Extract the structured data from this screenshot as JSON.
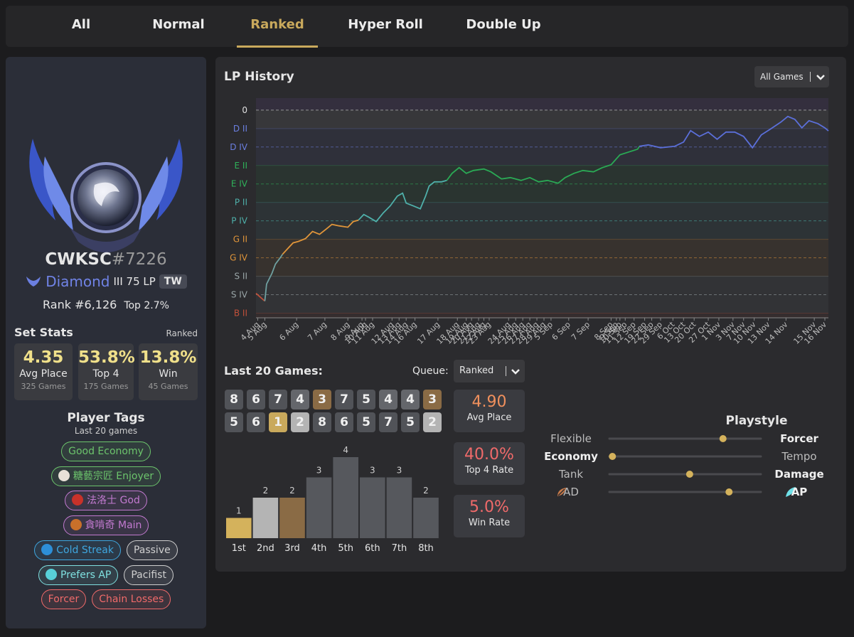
{
  "tabs": {
    "items": [
      "All",
      "Normal",
      "Ranked",
      "Hyper Roll",
      "Double Up"
    ],
    "active": 2
  },
  "profile": {
    "name": "CWKSC",
    "tag": "#7226",
    "tier": "Diamond",
    "division": "III 75 LP",
    "region": "TW",
    "rank": "Rank #6,126",
    "top": "Top 2.7%"
  },
  "set_stats": {
    "title": "Set Stats",
    "queue": "Ranked",
    "stats": [
      {
        "value": "4.35",
        "label": "Avg Place",
        "games": "325 Games"
      },
      {
        "value": "53.8%",
        "label": "Top 4",
        "games": "175 Games"
      },
      {
        "value": "13.8%",
        "label": "Win",
        "games": "45 Games"
      }
    ]
  },
  "player_tags": {
    "title": "Player Tags",
    "subtitle": "Last 20 games",
    "rows": [
      [
        {
          "text": "Good Economy",
          "color": "#6cc46c"
        }
      ],
      [
        {
          "text": "糖藝宗匠 Enjoyer",
          "color": "#6cc46c",
          "icon_color": "#e8e0d8"
        }
      ],
      [
        {
          "text": "法洛士 God",
          "color": "#c27ad0",
          "icon_color": "#c8322a"
        }
      ],
      [
        {
          "text": "貪啃奇 Main",
          "color": "#c27ad0",
          "icon_color": "#c9702a"
        }
      ],
      [
        {
          "text": "Cold Streak",
          "color": "#3fa7e0",
          "icon_color": "#2d8fd8"
        },
        {
          "text": "Passive",
          "color": "#cfcfcf"
        }
      ],
      [
        {
          "text": "Prefers AP",
          "color": "#7fe0e0",
          "icon_color": "#58d0d8"
        },
        {
          "text": "Pacifist",
          "color": "#cfcfcf"
        }
      ],
      [
        {
          "text": "Forcer",
          "color": "#f06a6a"
        },
        {
          "text": "Chain Losses",
          "color": "#f06a6a"
        }
      ]
    ]
  },
  "filter": "All Games",
  "last20": {
    "title": "Last 20 Games:",
    "queue_label": "Queue:",
    "queue": "Ranked",
    "placements": [
      [
        8,
        6,
        7,
        4,
        3,
        7,
        5,
        4,
        4,
        3
      ],
      [
        5,
        6,
        1,
        2,
        8,
        6,
        5,
        7,
        5,
        2
      ]
    ],
    "place_colors": [
      "#c9a95c",
      "#b4b4b4",
      "#8a6b45",
      "#64666b",
      "#515358",
      "#515358",
      "#515358",
      "#515358"
    ],
    "stats": [
      {
        "value": "4.90",
        "label": "Avg Place",
        "color": "#f0905d"
      },
      {
        "value": "40.0%",
        "label": "Top 4 Rate",
        "color": "#f06a6a"
      },
      {
        "value": "5.0%",
        "label": "Win Rate",
        "color": "#f06a6a"
      }
    ]
  },
  "playstyle": {
    "title": "Playstyle",
    "rows": [
      {
        "left": "Flexible",
        "right": "Forcer",
        "value": 0.75,
        "bold": "right"
      },
      {
        "left": "Economy",
        "right": "Tempo",
        "value": 0.02,
        "bold": "left"
      },
      {
        "left": "Tank",
        "right": "Damage",
        "value": 0.53,
        "bold": "right"
      },
      {
        "left": "AD",
        "right": "AP",
        "value": 0.79,
        "bold": "right"
      }
    ]
  },
  "chart_data": [
    {
      "type": "line",
      "title": "LP History",
      "xlim": [
        0,
        324
      ],
      "ylim": [
        -2250,
        130
      ],
      "yticks": [
        0,
        {
          "value": -200,
          "label": "D II"
        },
        {
          "value": -400,
          "label": "D IV"
        },
        {
          "value": -600,
          "label": "E II"
        },
        {
          "value": -800,
          "label": "E IV"
        },
        {
          "value": -1000,
          "label": "P II"
        },
        {
          "value": -1200,
          "label": "P IV"
        },
        {
          "value": -1400,
          "label": "G II"
        },
        {
          "value": -1600,
          "label": "G IV"
        },
        {
          "value": -1800,
          "label": "S II"
        },
        {
          "value": -2000,
          "label": "S IV"
        },
        {
          "value": -2200,
          "label": "B II"
        }
      ],
      "ytick_colors": [
        "#e0e0e0",
        "#6b7fe0",
        "#6b7fe0",
        "#2fb35a",
        "#2fb35a",
        "#4fb0aa",
        "#4fb0aa",
        "#e0953a",
        "#e0953a",
        "#9aa6a8",
        "#9aa6a8",
        "#c0503a"
      ],
      "xticks": [
        {
          "value": 1,
          "label": "4 Aug"
        },
        {
          "value": 5,
          "label": "5 Aug"
        },
        {
          "value": 23,
          "label": "6 Aug"
        },
        {
          "value": 39,
          "label": "7 Aug"
        },
        {
          "value": 52,
          "label": "8 Aug"
        },
        {
          "value": 60,
          "label": "9 Aug"
        },
        {
          "value": 62,
          "label": "10 Aug"
        },
        {
          "value": 66,
          "label": "11 Aug"
        },
        {
          "value": 77,
          "label": "12 Aug"
        },
        {
          "value": 81,
          "label": "13 Aug"
        },
        {
          "value": 85,
          "label": "14 Aug"
        },
        {
          "value": 90,
          "label": "16 Aug"
        },
        {
          "value": 103,
          "label": "17 Aug"
        },
        {
          "value": 114,
          "label": "18 Aug"
        },
        {
          "value": 119,
          "label": "19 Aug"
        },
        {
          "value": 122,
          "label": "20 Aug"
        },
        {
          "value": 126,
          "label": "21 Aug"
        },
        {
          "value": 129,
          "label": "22 Aug"
        },
        {
          "value": 132,
          "label": "23 Aug"
        },
        {
          "value": 143,
          "label": "24 Aug"
        },
        {
          "value": 147,
          "label": "25 Aug"
        },
        {
          "value": 151,
          "label": "26 Aug"
        },
        {
          "value": 155,
          "label": "27 Aug"
        },
        {
          "value": 159,
          "label": "28 Aug"
        },
        {
          "value": 163,
          "label": "29 Aug"
        },
        {
          "value": 167,
          "label": "5 Sep"
        },
        {
          "value": 177,
          "label": "6 Sep"
        },
        {
          "value": 188,
          "label": "7 Sep"
        },
        {
          "value": 201,
          "label": "8 Sep"
        },
        {
          "value": 204,
          "label": "9 Sep"
        },
        {
          "value": 206,
          "label": "10 Sep"
        },
        {
          "value": 209,
          "label": "11 Sep"
        },
        {
          "value": 214,
          "label": "12 Sep"
        },
        {
          "value": 220,
          "label": "19 Sep"
        },
        {
          "value": 224,
          "label": "22 Sep"
        },
        {
          "value": 229,
          "label": "29 Sep"
        },
        {
          "value": 236,
          "label": "6 Oct"
        },
        {
          "value": 242,
          "label": "13 Oct"
        },
        {
          "value": 248,
          "label": "20 Oct"
        },
        {
          "value": 256,
          "label": "27 Oct"
        },
        {
          "value": 262,
          "label": "1 Nov"
        },
        {
          "value": 270,
          "label": "3 Nov"
        },
        {
          "value": 276,
          "label": "7 Nov"
        },
        {
          "value": 282,
          "label": "10 Nov"
        },
        {
          "value": 290,
          "label": "13 Nov"
        },
        {
          "value": 300,
          "label": "14 Nov"
        },
        {
          "value": 316,
          "label": "15 Nov"
        },
        {
          "value": 322,
          "label": "16 Nov"
        }
      ],
      "series": [
        {
          "color": "#c0503a",
          "x": [
            0,
            5
          ],
          "values": [
            -1985,
            -2069
          ]
        },
        {
          "color": "#6fa0a0",
          "x": [
            5,
            6,
            9,
            11,
            14,
            15
          ],
          "values": [
            -2069,
            -1885,
            -1769,
            -1669,
            -1592,
            -1562
          ]
        },
        {
          "color": "#e0953a",
          "x": [
            15,
            18,
            21,
            24,
            28,
            32,
            36,
            40,
            43,
            47,
            52,
            55,
            58
          ],
          "values": [
            -1562,
            -1500,
            -1438,
            -1423,
            -1392,
            -1315,
            -1346,
            -1285,
            -1238,
            -1254,
            -1269,
            -1208,
            -1192
          ]
        },
        {
          "color": "#4fb0aa",
          "x": [
            58,
            61,
            64,
            68,
            72,
            76,
            80,
            83,
            85,
            89,
            93,
            96,
            98,
            101,
            105,
            108
          ],
          "values": [
            -1192,
            -1131,
            -1162,
            -1208,
            -1115,
            -1038,
            -931,
            -900,
            -1008,
            -1038,
            -1069,
            -931,
            -823,
            -777,
            -777,
            -762
          ]
        },
        {
          "color": "#2aaa55",
          "x": [
            108,
            111,
            115,
            119,
            123,
            129,
            133,
            139,
            144,
            150,
            155,
            160,
            165,
            171,
            175,
            180,
            185,
            191,
            196,
            201,
            206,
            211,
            216,
            217
          ],
          "values": [
            -762,
            -685,
            -623,
            -685,
            -654,
            -638,
            -669,
            -746,
            -731,
            -762,
            -731,
            -777,
            -762,
            -792,
            -731,
            -685,
            -654,
            -669,
            -623,
            -592,
            -485,
            -454,
            -423,
            -392
          ]
        },
        {
          "color": "#5b6fd9",
          "x": [
            217,
            222,
            229,
            237,
            242,
            246,
            251,
            256,
            261,
            266,
            271,
            276,
            281,
            286,
            291,
            297,
            301,
            305,
            309,
            313,
            318,
            322,
            324
          ],
          "values": [
            -392,
            -377,
            -408,
            -392,
            -346,
            -223,
            -285,
            -238,
            -315,
            -238,
            -238,
            -285,
            -408,
            -269,
            -208,
            -131,
            -69,
            -100,
            -192,
            -115,
            -146,
            -192,
            -225
          ]
        }
      ]
    },
    {
      "type": "bar",
      "categories": [
        "1st",
        "2nd",
        "3rd",
        "4th",
        "5th",
        "6th",
        "7th",
        "8th"
      ],
      "values": [
        1,
        2,
        2,
        3,
        4,
        3,
        3,
        2
      ],
      "colors": [
        "#d4b25c",
        "#b4b4b4",
        "#8a6b45",
        "#56585d",
        "#56585d",
        "#56585d",
        "#56585d",
        "#56585d"
      ],
      "ylim": [
        0,
        4
      ]
    }
  ]
}
